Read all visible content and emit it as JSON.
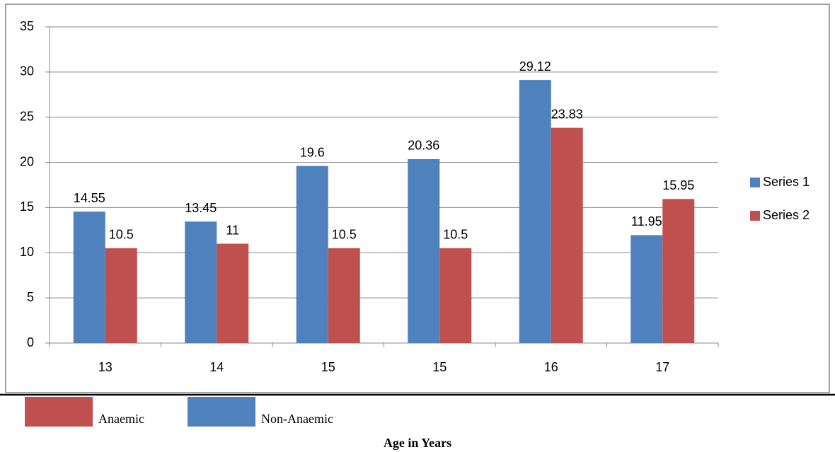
{
  "chart_data": {
    "type": "bar",
    "categories": [
      "13",
      "14",
      "15",
      "15",
      "16",
      "17"
    ],
    "series": [
      {
        "name": "Series 1",
        "color": "#4f81bd",
        "values": [
          14.55,
          13.45,
          19.6,
          20.36,
          29.12,
          11.95
        ]
      },
      {
        "name": "Series 2",
        "color": "#c0504d",
        "values": [
          10.5,
          11,
          10.5,
          10.5,
          23.83,
          15.95
        ]
      }
    ],
    "ylim": [
      0,
      35
    ],
    "yticks": [
      0,
      5,
      10,
      15,
      20,
      25,
      30,
      35
    ],
    "grid": true,
    "legend": "right",
    "footer_legend": [
      {
        "label": "Anaemic",
        "color": "#c0504d"
      },
      {
        "label": "Non-Anaemic",
        "color": "#4f81bd"
      }
    ],
    "xlabel": "Age in Years"
  }
}
